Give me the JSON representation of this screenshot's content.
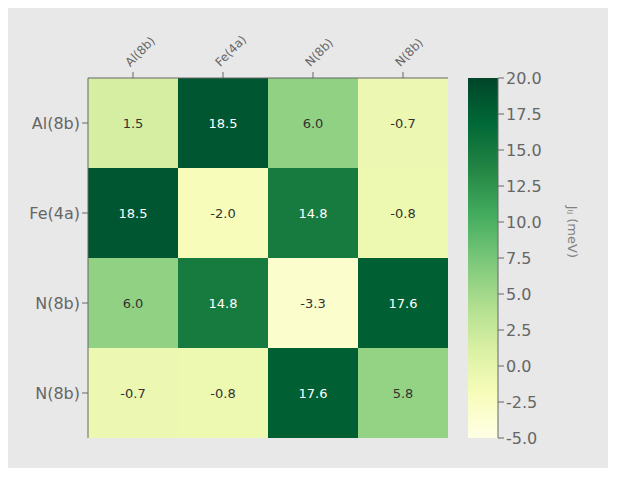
{
  "chart_data": {
    "type": "heatmap",
    "categories": [
      "Al(8b)",
      "Fe(4a)",
      "N(8b)",
      "N(8b)"
    ],
    "matrix": [
      [
        1.5,
        18.5,
        6.0,
        -0.7
      ],
      [
        18.5,
        -2.0,
        14.8,
        -0.8
      ],
      [
        6.0,
        14.8,
        -3.3,
        17.6
      ],
      [
        -0.7,
        -0.8,
        17.6,
        5.8
      ]
    ],
    "value_labels": [
      [
        "1.5",
        "18.5",
        "6.0",
        "-0.7"
      ],
      [
        "18.5",
        "-2.0",
        "14.8",
        "-0.8"
      ],
      [
        "6.0",
        "14.8",
        "-3.3",
        "17.6"
      ],
      [
        "-0.7",
        "-0.8",
        "17.6",
        "5.8"
      ]
    ],
    "colorbar": {
      "label": "Jᵢⱼ (meV)",
      "range": [
        -5.0,
        20.0
      ],
      "ticks": [
        {
          "value": -5.0,
          "label": "-5.0"
        },
        -2.5,
        {
          "value": 0.0,
          "label": "0.0"
        },
        2.5,
        {
          "value": 5.0,
          "label": "5.0"
        },
        7.5,
        {
          "value": 10.0,
          "label": "10.0"
        },
        12.5,
        {
          "value": 15.0,
          "label": "15.0"
        },
        17.5,
        {
          "value": 20.0,
          "label": "20.0"
        }
      ]
    }
  }
}
